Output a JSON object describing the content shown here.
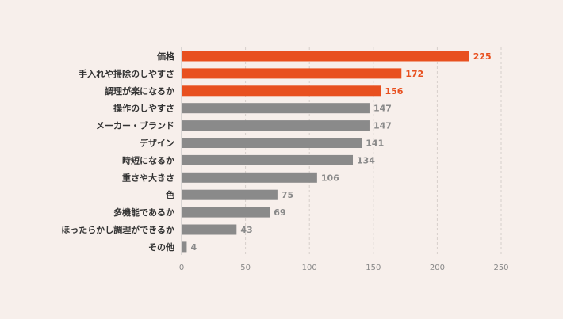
{
  "chart_data": {
    "type": "bar",
    "orientation": "horizontal",
    "title": "",
    "xlabel": "",
    "ylabel": "",
    "xlim": [
      0,
      250
    ],
    "xticks": [
      0,
      50,
      100,
      150,
      200,
      250
    ],
    "grid": true,
    "categories": [
      "価格",
      "手入れや掃除のしやすさ",
      "調理が楽になるか",
      "操作のしやすさ",
      "メーカー・ブランド",
      "デザイン",
      "時短になるか",
      "重さや大きさ",
      "色",
      "多機能であるか",
      "ほったらかし調理ができるか",
      "その他"
    ],
    "values": [
      225,
      172,
      156,
      147,
      147,
      141,
      134,
      106,
      75,
      69,
      43,
      4
    ],
    "highlight_count": 3,
    "colors": {
      "highlight": "#e8501f",
      "normal": "#8a8a8a",
      "background": "#f7efeb"
    }
  }
}
